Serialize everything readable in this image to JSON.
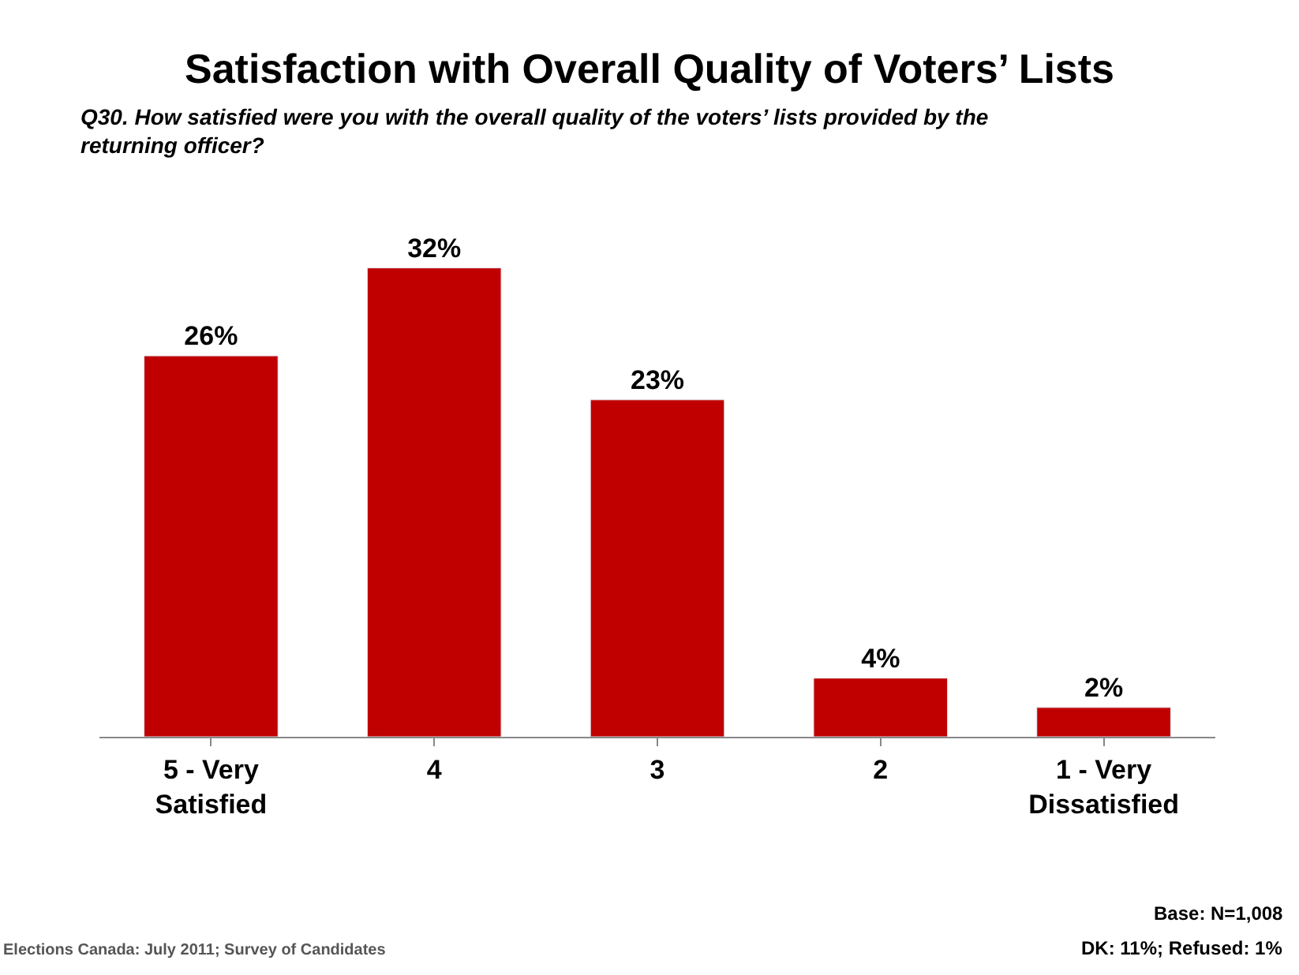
{
  "chart_data": {
    "type": "bar",
    "title": "Satisfaction with Overall Quality of Voters’ Lists",
    "subtitle": "Q30. How satisfied were you with the overall quality of the voters’ lists provided by the returning officer?",
    "categories": [
      "5 - Very\nSatisfied",
      "4",
      "3",
      "2",
      "1 - Very\nDissatisfied"
    ],
    "values": [
      26,
      32,
      23,
      4,
      2
    ],
    "value_labels": [
      "26%",
      "32%",
      "23%",
      "4%",
      "2%"
    ],
    "color": "#c00000",
    "legend": false,
    "annotations": [
      "Elections Canada: July 2011; Survey of Candidates",
      "Base: N=1,008",
      "DK: 11%; Refused: 1%"
    ]
  }
}
